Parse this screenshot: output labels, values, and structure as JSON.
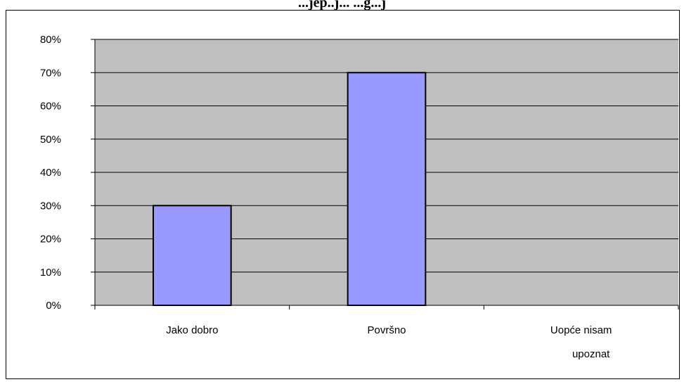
{
  "chart_data": {
    "type": "bar",
    "title": "...jep..j... ...g...j",
    "categories": [
      "Jako dobro",
      "Površno",
      "Uopće nisam upoznat"
    ],
    "category_lines": [
      [
        "Jako dobro"
      ],
      [
        "Površno"
      ],
      [
        "Uopće nisam",
        "upoznat"
      ]
    ],
    "values": [
      30,
      70,
      0
    ],
    "ylim": [
      0,
      80
    ],
    "y_ticks": [
      "0%",
      "10%",
      "20%",
      "30%",
      "40%",
      "50%",
      "60%",
      "70%",
      "80%"
    ],
    "grid": true,
    "legend": "none",
    "colors": {
      "bar_fill": "#9999ff",
      "bar_stroke": "#000000",
      "plot_background": "#c0c0c0"
    }
  }
}
